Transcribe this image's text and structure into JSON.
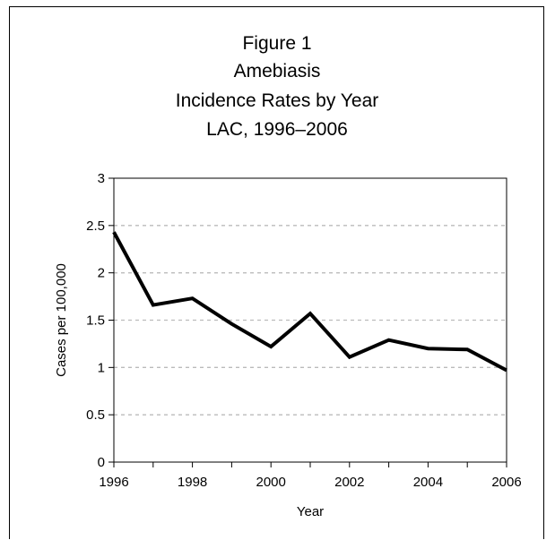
{
  "chart_data": {
    "type": "line",
    "title_lines": [
      "Figure 1",
      "Amebiasis",
      "Incidence Rates by Year",
      "LAC, 1996–2006"
    ],
    "xlabel": "Year",
    "ylabel": "Cases per 100,000",
    "x": [
      1996,
      1997,
      1998,
      1999,
      2000,
      2001,
      2002,
      2003,
      2004,
      2005,
      2006
    ],
    "series": [
      {
        "values": [
          2.43,
          1.66,
          1.73,
          1.46,
          1.22,
          1.57,
          1.11,
          1.29,
          1.2,
          1.19,
          0.97
        ]
      }
    ],
    "xlim": [
      1996,
      2006
    ],
    "ylim": [
      0,
      3
    ],
    "xticks": [
      "1996",
      "1998",
      "2000",
      "2002",
      "2004",
      "2006"
    ],
    "yticks": [
      "0",
      "0.5",
      "1",
      "1.5",
      "2",
      "2.5",
      "3"
    ],
    "grid": "horizontal dashed",
    "legend": "none",
    "colors": {
      "line": "#000000",
      "grid": "#bbbbbb",
      "frame": "#000000"
    }
  }
}
